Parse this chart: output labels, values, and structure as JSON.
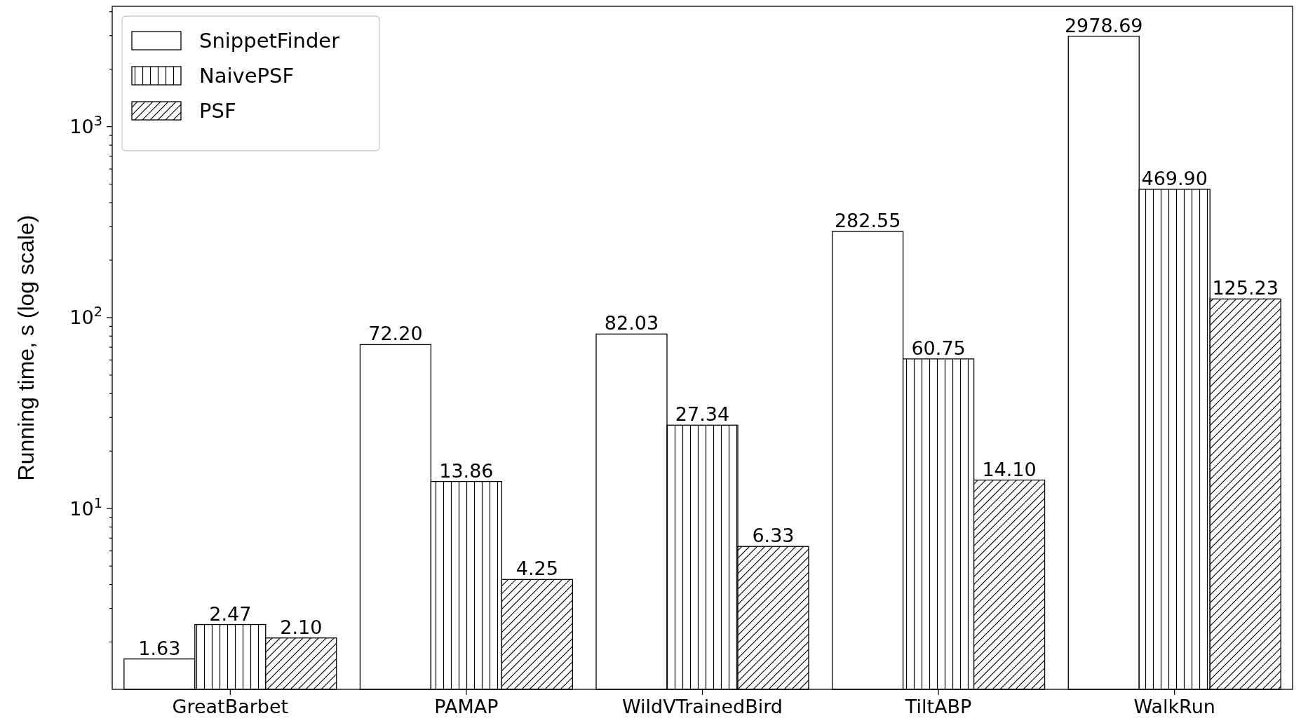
{
  "chart_data": {
    "type": "bar",
    "ylabel": "Running time, s (log scale)",
    "log": true,
    "legend": "top left",
    "categories": [
      "GreatBarbet",
      "PAMAP",
      "WildVTrainedBird",
      "TiltABP",
      "WalkRun"
    ],
    "ylim": [
      1.13,
      4270
    ],
    "yticks": [
      {
        "value": 2,
        "label": null
      },
      {
        "value": 3,
        "label": null
      },
      {
        "value": 4,
        "label": null
      },
      {
        "value": 5,
        "label": null
      },
      {
        "value": 6,
        "label": null
      },
      {
        "value": 7,
        "label": null
      },
      {
        "value": 8,
        "label": null
      },
      {
        "value": 9,
        "label": null
      },
      {
        "value": 10,
        "label": "10$^{1}$"
      },
      {
        "value": 20,
        "label": null
      },
      {
        "value": 30,
        "label": null
      },
      {
        "value": 40,
        "label": null
      },
      {
        "value": 50,
        "label": null
      },
      {
        "value": 60,
        "label": null
      },
      {
        "value": 70,
        "label": null
      },
      {
        "value": 80,
        "label": null
      },
      {
        "value": 90,
        "label": null
      },
      {
        "value": 100,
        "label": "10$^{2}$"
      },
      {
        "value": 200,
        "label": null
      },
      {
        "value": 300,
        "label": null
      },
      {
        "value": 400,
        "label": null
      },
      {
        "value": 500,
        "label": null
      },
      {
        "value": 600,
        "label": null
      },
      {
        "value": 700,
        "label": null
      },
      {
        "value": 800,
        "label": null
      },
      {
        "value": 900,
        "label": null
      },
      {
        "value": 1000,
        "label": "10$^{3}$"
      },
      {
        "value": 2000,
        "label": null
      },
      {
        "value": 3000,
        "label": null
      },
      {
        "value": 4000,
        "label": null
      }
    ],
    "series": [
      {
        "name": "SnippetFinder",
        "color": "#ffffff",
        "values": [
          1.63,
          72.2,
          82.03,
          282.55,
          2978.69
        ],
        "value_labels": [
          "1.63",
          "72.20",
          "82.03",
          "282.55",
          "2978.69"
        ]
      },
      {
        "name": "NaivePSF",
        "color": "#000000",
        "values": [
          2.47,
          13.86,
          27.34,
          60.75,
          469.9
        ],
        "value_labels": [
          "2.47",
          "13.86",
          "27.34",
          "60.75",
          "469.90"
        ]
      },
      {
        "name": "PSF",
        "color": "#000000",
        "values": [
          2.1,
          4.25,
          6.33,
          14.1,
          125.23
        ],
        "value_labels": [
          "2.10",
          "4.25",
          "6.33",
          "14.10",
          "125.23"
        ]
      }
    ]
  }
}
